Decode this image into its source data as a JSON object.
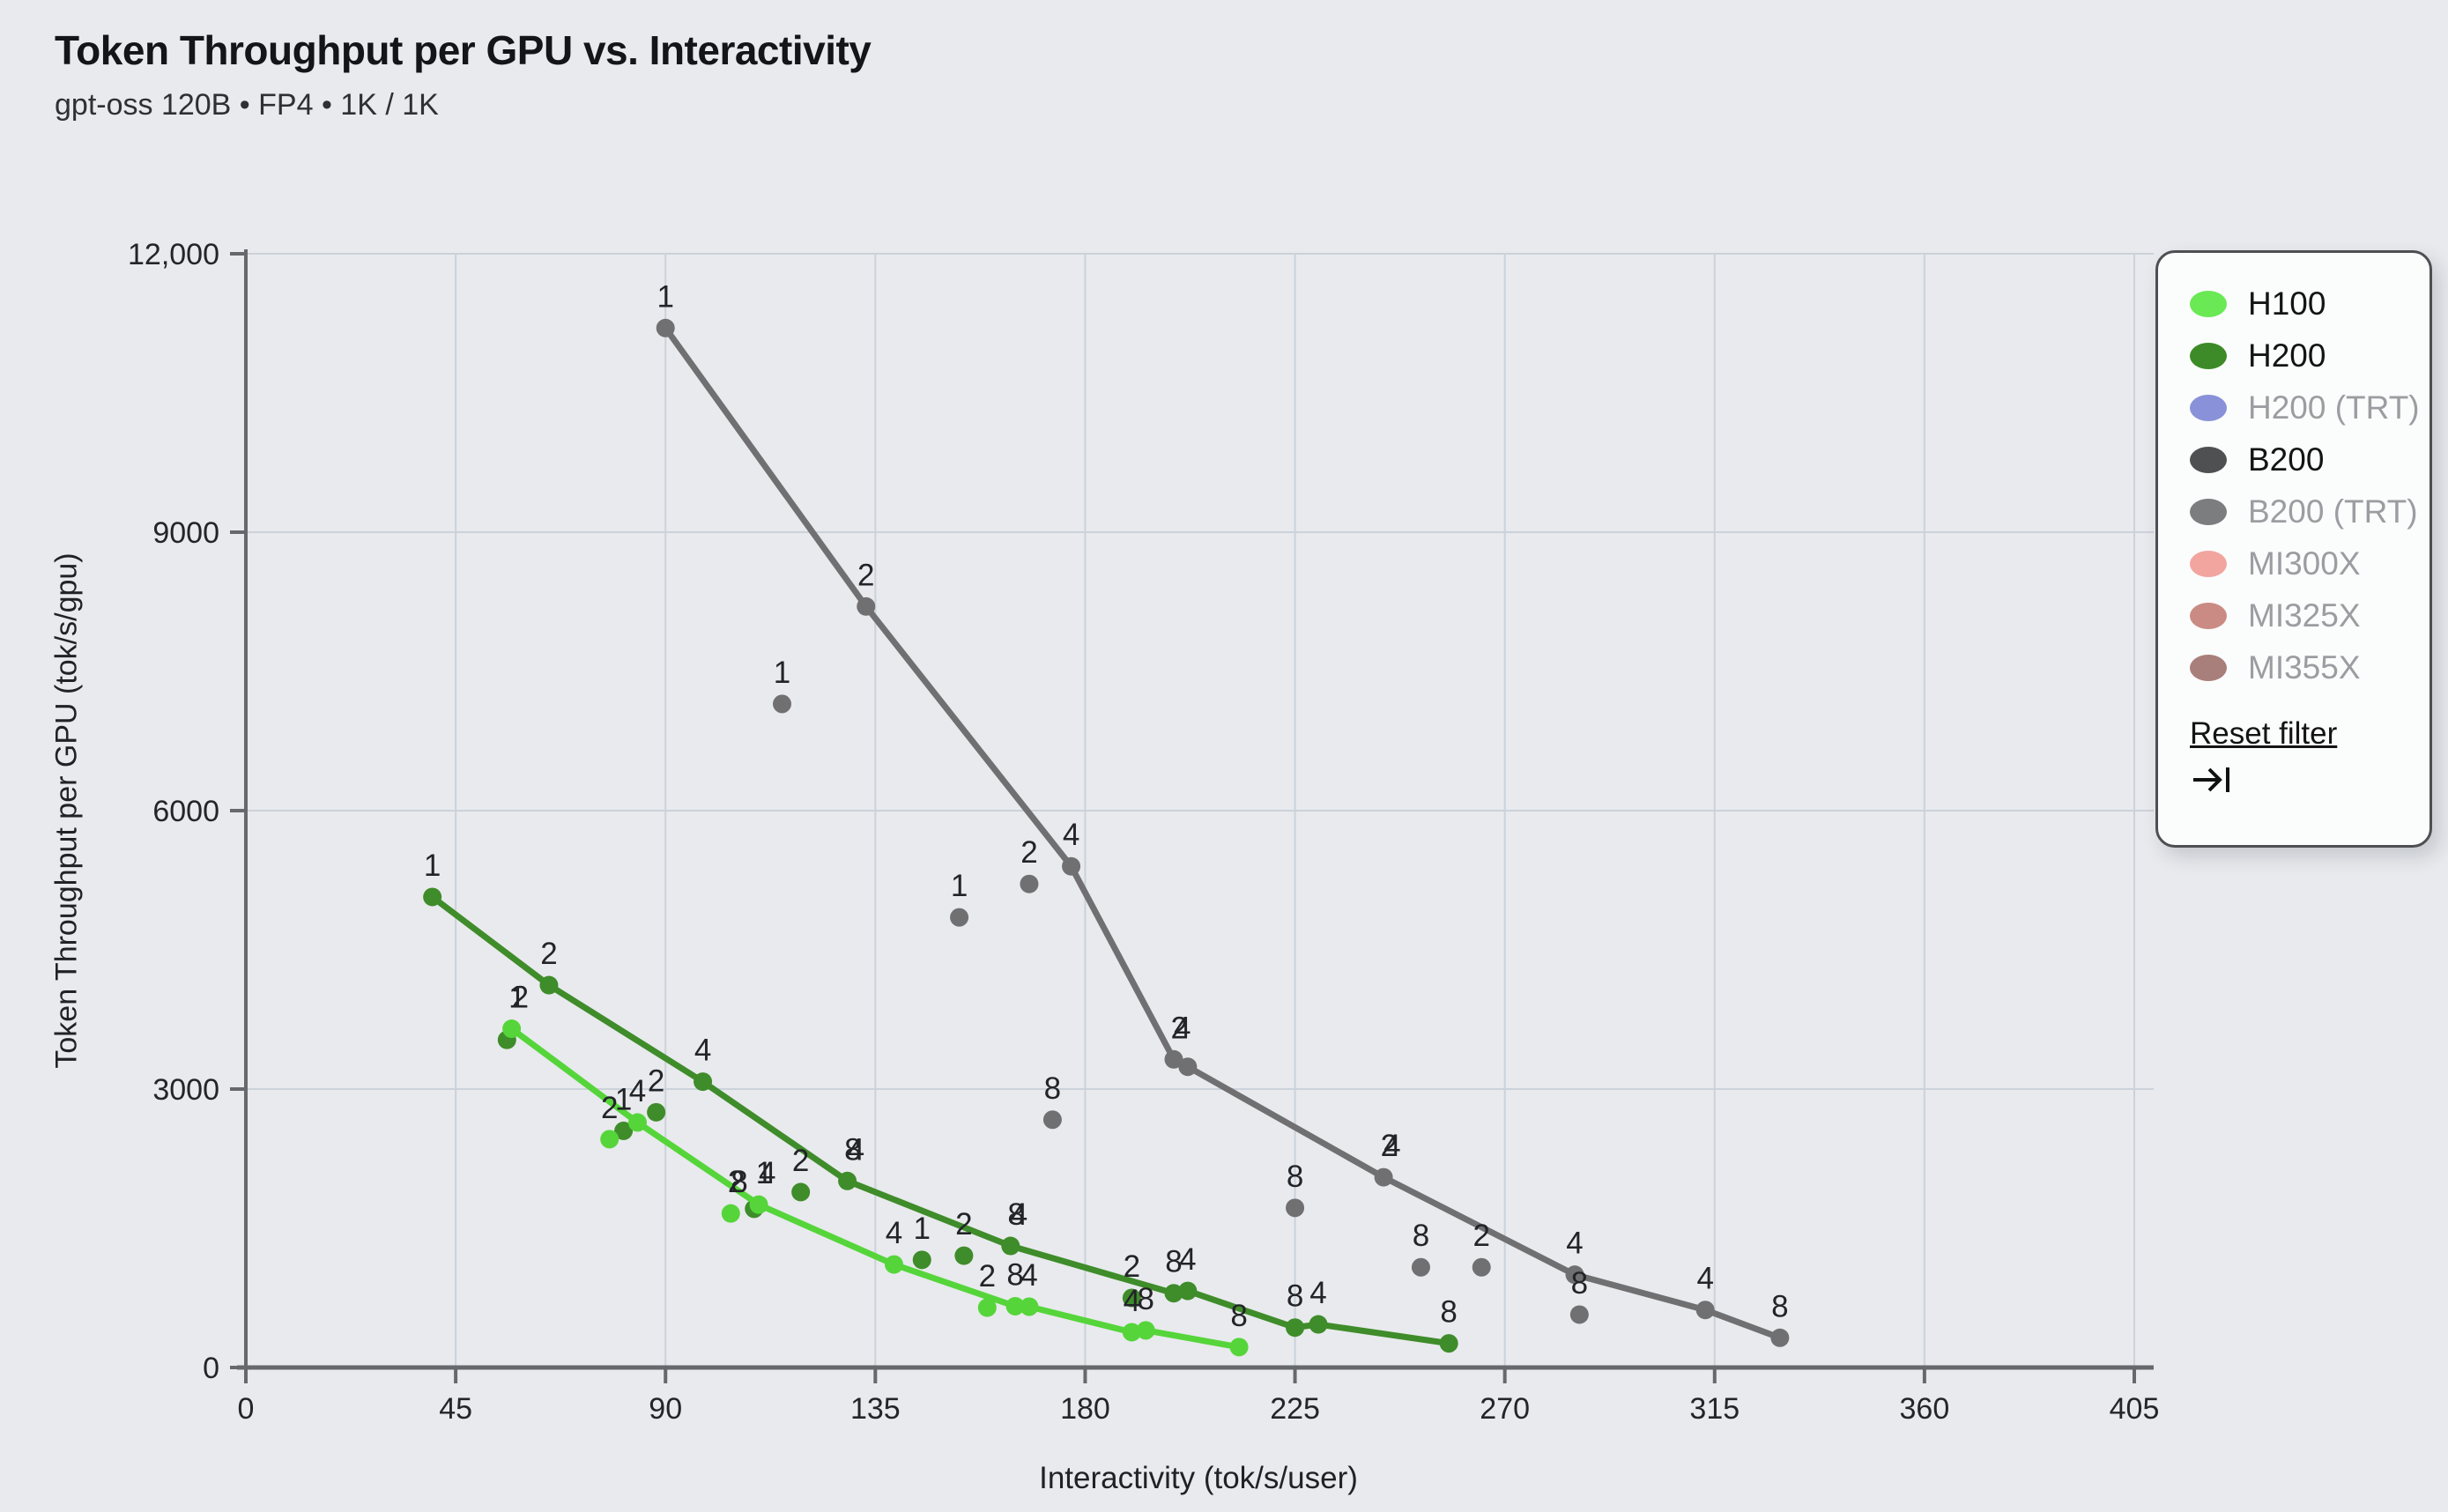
{
  "header": {
    "title": "Token Throughput per GPU vs. Interactivity",
    "subtitle": "gpt-oss 120B • FP4 • 1K / 1K"
  },
  "legend": {
    "reset_label": "Reset filter",
    "items": [
      {
        "label": "H100",
        "color": "#6ae955",
        "active": true
      },
      {
        "label": "H200",
        "color": "#3d8b28",
        "active": true
      },
      {
        "label": "H200 (TRT)",
        "color": "#8992d8",
        "active": false
      },
      {
        "label": "B200",
        "color": "#4f5052",
        "active": true
      },
      {
        "label": "B200 (TRT)",
        "color": "#7c7d7f",
        "active": false
      },
      {
        "label": "MI300X",
        "color": "#f2a59f",
        "active": false
      },
      {
        "label": "MI325X",
        "color": "#ca8b85",
        "active": false
      },
      {
        "label": "MI355X",
        "color": "#a87f7b",
        "active": false
      }
    ]
  },
  "chart_data": {
    "type": "scatter",
    "title": "Token Throughput per GPU vs. Interactivity",
    "subtitle": "gpt-oss 120B • FP4 • 1K / 1K",
    "xlabel": "Interactivity (tok/s/user)",
    "ylabel": "Token Throughput per GPU (tok/s/gpu)",
    "xlim": [
      0,
      405
    ],
    "ylim": [
      0,
      12000
    ],
    "grid": true,
    "legend_position": "top-right",
    "xticks": [
      "0",
      "45",
      "90",
      "135",
      "180",
      "225",
      "270",
      "315",
      "360",
      "405"
    ],
    "yticks": [
      {
        "value": 0,
        "label": "0"
      },
      {
        "value": 3000,
        "label": "3000"
      },
      {
        "value": 6000,
        "label": "6000"
      },
      {
        "value": 9000,
        "label": "9000"
      },
      {
        "value": 12000,
        "label": "12,000"
      }
    ],
    "point_label_meaning": "tensor-parallel degree shown beside each measured point",
    "series": [
      {
        "name": "H100",
        "color": "#55d53a",
        "pareto_line": [
          [
            57,
            3650,
            "12",
            1
          ],
          [
            84,
            2640,
            "4",
            0
          ],
          [
            110,
            1755,
            "14",
            1
          ],
          [
            139,
            1110,
            "4",
            0
          ],
          [
            165,
            660,
            "8",
            0
          ],
          [
            168,
            655,
            "4",
            0
          ],
          [
            190,
            380,
            "4",
            0
          ],
          [
            193,
            400,
            "8",
            0
          ],
          [
            213,
            220,
            "8",
            0
          ]
        ],
        "scatter": [
          [
            78,
            2460,
            "2",
            0
          ],
          [
            104,
            1660,
            "28",
            1
          ],
          [
            159,
            645,
            "2",
            0
          ]
        ]
      },
      {
        "name": "H200",
        "color": "#3f8c2a",
        "pareto_line": [
          [
            40,
            5070,
            "1",
            0
          ],
          [
            65,
            4120,
            "2",
            0
          ],
          [
            98,
            3080,
            "4",
            0
          ],
          [
            129,
            2010,
            "84",
            1
          ],
          [
            164,
            1310,
            "84",
            1
          ],
          [
            199,
            800,
            "8",
            0
          ],
          [
            202,
            825,
            "4",
            0
          ],
          [
            225,
            430,
            "8",
            0
          ],
          [
            230,
            465,
            "4",
            0
          ],
          [
            258,
            260,
            "8",
            0
          ]
        ],
        "scatter": [
          [
            56,
            3530,
            "",
            0
          ],
          [
            81,
            2550,
            "1",
            0
          ],
          [
            88,
            2750,
            "2",
            0
          ],
          [
            109,
            1710,
            "",
            0
          ],
          [
            119,
            1890,
            "2",
            0
          ],
          [
            145,
            1160,
            "1",
            0
          ],
          [
            154,
            1205,
            "2",
            0
          ],
          [
            190,
            750,
            "2",
            0
          ]
        ]
      },
      {
        "name": "B200",
        "color": "#707072",
        "pareto_line": [
          [
            90,
            11200,
            "1",
            0
          ],
          [
            133,
            8200,
            "2",
            0
          ],
          [
            177,
            5400,
            "4",
            0
          ],
          [
            199,
            3320,
            "24",
            1
          ],
          [
            202,
            3240,
            "",
            0
          ],
          [
            244,
            2050,
            "24",
            1
          ],
          [
            285,
            1000,
            "4",
            0
          ],
          [
            313,
            620,
            "4",
            0
          ],
          [
            329,
            320,
            "8",
            0
          ]
        ],
        "scatter": [
          [
            115,
            7150,
            "1",
            0
          ],
          [
            153,
            4850,
            "1",
            0
          ],
          [
            168,
            5210,
            "2",
            0
          ],
          [
            173,
            2670,
            "8",
            0
          ],
          [
            225,
            1720,
            "8",
            0
          ],
          [
            252,
            1080,
            "8",
            0
          ],
          [
            265,
            1080,
            "2",
            0
          ],
          [
            286,
            570,
            "8",
            0
          ]
        ]
      }
    ]
  }
}
